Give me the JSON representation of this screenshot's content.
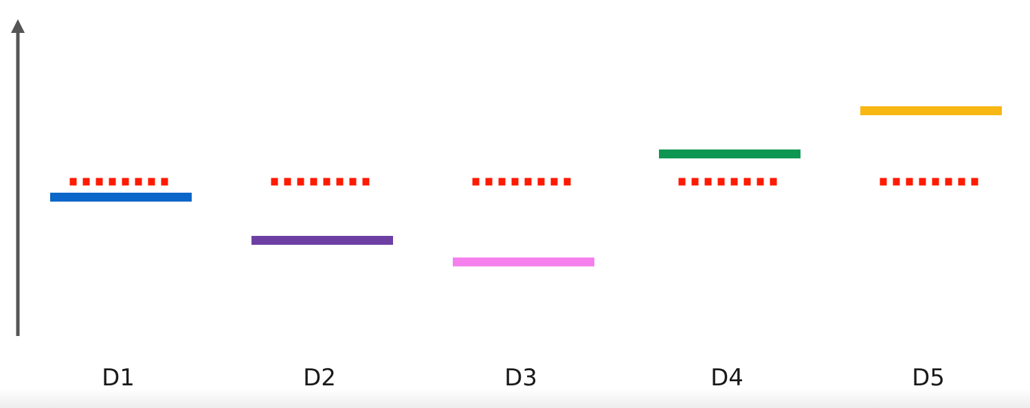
{
  "chart_data": {
    "type": "line",
    "title": "",
    "xlabel": "",
    "ylabel": "",
    "categories": [
      "D1",
      "D2",
      "D3",
      "D4",
      "D5"
    ],
    "ylim": [
      0,
      10
    ],
    "grid": false,
    "series": [
      {
        "values": [
          4.5,
          3.1,
          2.4,
          5.9,
          7.3
        ],
        "colors": [
          "#0a66c8",
          "#6e3fa3",
          "#f57fed",
          "#0d9651",
          "#f8b713"
        ],
        "style": "solid"
      },
      {
        "values": [
          5.0,
          5.0,
          5.0,
          5.0,
          5.0
        ],
        "color": "#ff1a00",
        "style": "dotted"
      }
    ],
    "axis_color": "#555555"
  }
}
